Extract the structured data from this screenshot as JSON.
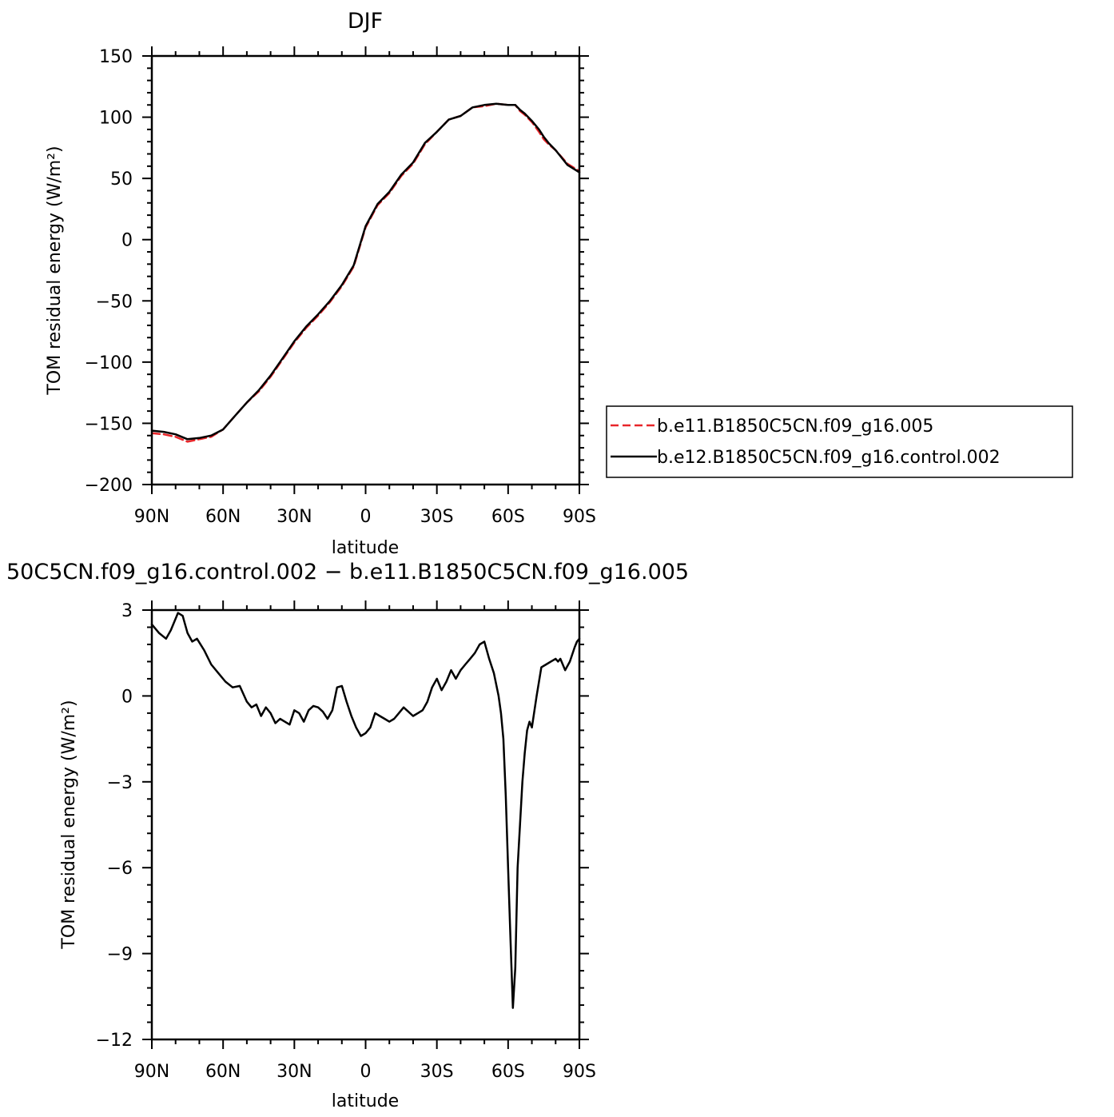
{
  "chart_data": [
    {
      "type": "line",
      "title": "DJF",
      "xlabel": "latitude",
      "ylabel": "TOM residual energy (W/m²)",
      "x_tick_labels": [
        "90N",
        "60N",
        "30N",
        "0",
        "30S",
        "60S",
        "90S"
      ],
      "x_tick_values": [
        -90,
        -60,
        -30,
        0,
        30,
        60,
        90
      ],
      "xlim": [
        -90,
        90
      ],
      "ylim": [
        -200,
        150
      ],
      "y_tick_values": [
        150,
        100,
        50,
        0,
        -50,
        -100,
        -150,
        -200
      ],
      "y_tick_labels": [
        "150",
        "100",
        "50",
        "0",
        "−50",
        "−100",
        "−150",
        "−200"
      ],
      "grid": false,
      "legend": {
        "placement": "right-outside"
      },
      "series": [
        {
          "name": "b.e11.B1850C5CN.f09_g16.005",
          "color": "#e8262a",
          "dash": "dashed",
          "x": [
            -90,
            -85,
            -80,
            -75,
            -70,
            -65,
            -60,
            -55,
            -50,
            -45,
            -40,
            -35,
            -30,
            -25,
            -20,
            -15,
            -10,
            -5,
            0,
            5,
            10,
            15,
            20,
            25,
            30,
            35,
            40,
            45,
            50,
            55,
            60,
            63,
            65,
            67,
            70,
            73,
            75,
            77,
            80,
            85,
            90
          ],
          "y": [
            -158,
            -159,
            -161,
            -165,
            -163,
            -161,
            -155,
            -144,
            -133,
            -124,
            -112,
            -98,
            -84,
            -72,
            -62,
            -51,
            -38,
            -22,
            10,
            28,
            38,
            52,
            62,
            78,
            88,
            98,
            101,
            108,
            109,
            111,
            110,
            110,
            105,
            102,
            96,
            88,
            82,
            78,
            73,
            62,
            56
          ]
        },
        {
          "name": "b.e12.B1850C5CN.f09_g16.control.002",
          "color": "#000000",
          "dash": "solid",
          "x": [
            -90,
            -85,
            -80,
            -75,
            -70,
            -65,
            -60,
            -55,
            -50,
            -45,
            -40,
            -35,
            -30,
            -25,
            -20,
            -15,
            -10,
            -5,
            0,
            5,
            10,
            15,
            20,
            25,
            30,
            35,
            40,
            45,
            50,
            55,
            60,
            63,
            65,
            67,
            70,
            73,
            75,
            77,
            80,
            85,
            90
          ],
          "y": [
            -156,
            -157,
            -159,
            -163,
            -162,
            -160,
            -155,
            -144,
            -133,
            -123,
            -111,
            -97,
            -83,
            -71,
            -61,
            -50,
            -37,
            -21,
            11,
            29,
            39,
            53,
            63,
            79,
            88,
            98,
            101,
            108,
            110,
            111,
            110,
            110,
            106,
            103,
            97,
            90,
            84,
            79,
            73,
            61,
            55
          ]
        }
      ]
    },
    {
      "type": "line",
      "title": "50C5CN.f09_g16.control.002 − b.e11.B1850C5CN.f09_g16.005",
      "xlabel": "latitude",
      "ylabel": "TOM residual energy (W/m²)",
      "x_tick_labels": [
        "90N",
        "60N",
        "30N",
        "0",
        "30S",
        "60S",
        "90S"
      ],
      "x_tick_values": [
        -90,
        -60,
        -30,
        0,
        30,
        60,
        90
      ],
      "xlim": [
        -90,
        90
      ],
      "ylim": [
        -12,
        3
      ],
      "y_tick_values": [
        3,
        0,
        -3,
        -6,
        -9,
        -12
      ],
      "y_tick_labels": [
        "3",
        "0",
        "−3",
        "−6",
        "−9",
        "−12"
      ],
      "grid": false,
      "series": [
        {
          "color": "#000000",
          "dash": "solid",
          "x": [
            -90,
            -87,
            -84,
            -82,
            -79,
            -77,
            -75,
            -73,
            -71,
            -68,
            -65,
            -62,
            -59,
            -56,
            -53,
            -50,
            -48,
            -46,
            -44,
            -42,
            -40,
            -38,
            -36,
            -34,
            -32,
            -30,
            -28,
            -26,
            -24,
            -22,
            -20,
            -18,
            -16,
            -14,
            -12,
            -10,
            -8,
            -6,
            -4,
            -2,
            0,
            2,
            4,
            6,
            8,
            10,
            12,
            14,
            16,
            18,
            20,
            22,
            24,
            26,
            28,
            30,
            32,
            34,
            36,
            38,
            40,
            42,
            44,
            46,
            48,
            50,
            52,
            54,
            56,
            57,
            58,
            59,
            60,
            61,
            62,
            63,
            64,
            65,
            66,
            67,
            68,
            69,
            70,
            72,
            74,
            76,
            78,
            80,
            81,
            82,
            84,
            86,
            88,
            89,
            90
          ],
          "y": [
            2.5,
            2.2,
            2.0,
            2.3,
            2.9,
            2.8,
            2.2,
            1.9,
            2.0,
            1.6,
            1.1,
            0.8,
            0.5,
            0.3,
            0.35,
            -0.2,
            -0.4,
            -0.3,
            -0.7,
            -0.4,
            -0.6,
            -0.95,
            -0.8,
            -0.9,
            -1.0,
            -0.5,
            -0.6,
            -0.9,
            -0.5,
            -0.35,
            -0.4,
            -0.55,
            -0.8,
            -0.5,
            0.3,
            0.35,
            -0.2,
            -0.7,
            -1.1,
            -1.4,
            -1.3,
            -1.1,
            -0.6,
            -0.7,
            -0.8,
            -0.9,
            -0.8,
            -0.6,
            -0.4,
            -0.55,
            -0.7,
            -0.6,
            -0.5,
            -0.2,
            0.3,
            0.6,
            0.2,
            0.5,
            0.9,
            0.6,
            0.9,
            1.1,
            1.3,
            1.5,
            1.8,
            1.9,
            1.3,
            0.8,
            0.0,
            -0.6,
            -1.5,
            -3.5,
            -6.0,
            -8.5,
            -10.9,
            -9.5,
            -6.0,
            -4.5,
            -3.0,
            -2.0,
            -1.2,
            -0.9,
            -1.1,
            0.0,
            1.0,
            1.1,
            1.2,
            1.3,
            1.2,
            1.3,
            0.9,
            1.2,
            1.7,
            1.9,
            2.0
          ]
        }
      ]
    }
  ]
}
